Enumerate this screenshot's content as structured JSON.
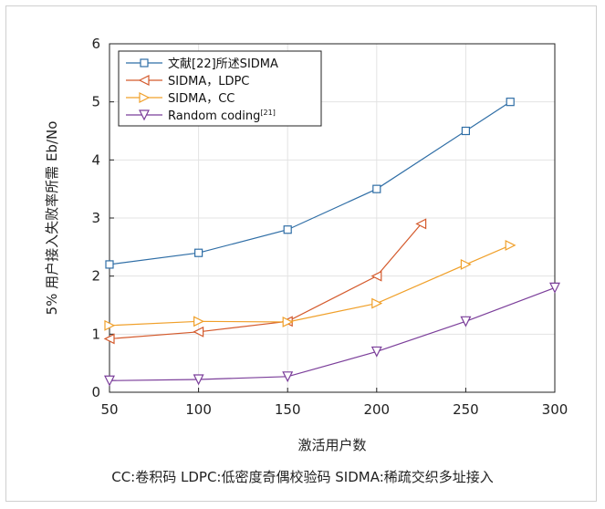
{
  "chart_data": {
    "type": "line",
    "xlabel": "激活用户数",
    "ylabel": "5% 用户接入失败率所需 Eb/No",
    "xlim": [
      50,
      300
    ],
    "ylim": [
      0,
      6
    ],
    "xticks": [
      50,
      100,
      150,
      200,
      250,
      300
    ],
    "yticks": [
      0,
      1,
      2,
      3,
      4,
      5,
      6
    ],
    "grid": true,
    "legend_position": "top-left",
    "series": [
      {
        "name": "文献[22]所述SIDMA",
        "marker": "square",
        "color": "#2f6ea6",
        "x": [
          50,
          100,
          150,
          200,
          250,
          275
        ],
        "y": [
          2.2,
          2.4,
          2.8,
          3.5,
          4.5,
          5.0
        ]
      },
      {
        "name": "SIDMA，LDPC",
        "marker": "triangle-left",
        "color": "#d45a2c",
        "x": [
          50,
          100,
          150,
          200,
          225
        ],
        "y": [
          0.92,
          1.04,
          1.22,
          2.0,
          2.9
        ]
      },
      {
        "name": "SIDMA，CC",
        "marker": "triangle-right",
        "color": "#f0a02a",
        "x": [
          50,
          100,
          150,
          200,
          250,
          275
        ],
        "y": [
          1.15,
          1.22,
          1.21,
          1.53,
          2.2,
          2.53
        ]
      },
      {
        "name": "Random coding",
        "name_superscript": "[21]",
        "marker": "triangle-down",
        "color": "#7b3e9a",
        "x": [
          50,
          100,
          150,
          200,
          250,
          300
        ],
        "y": [
          0.2,
          0.22,
          0.27,
          0.7,
          1.22,
          1.8
        ]
      }
    ]
  },
  "caption": "CC:卷积码     LDPC:低密度奇偶校验码     SIDMA:稀疏交织多址接入"
}
